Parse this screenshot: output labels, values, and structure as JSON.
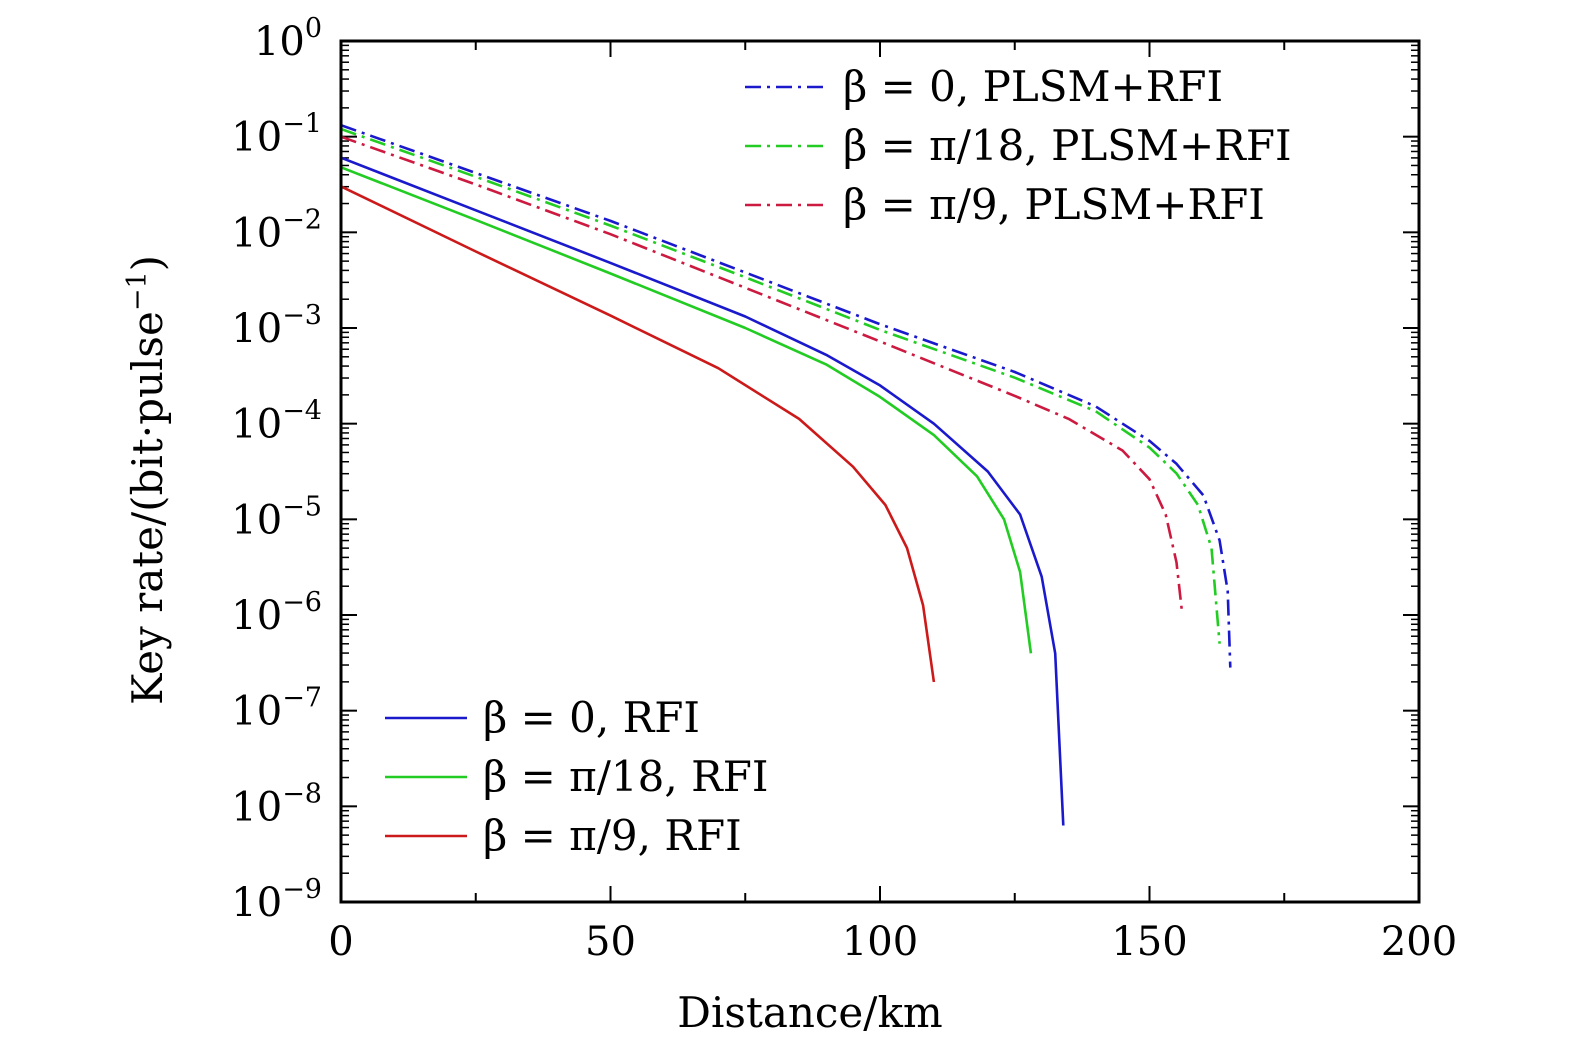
{
  "chart_data": {
    "type": "line",
    "title": "",
    "xlabel": "Distance/km",
    "ylabel": "Key rate/(bit·pulse⁻¹)",
    "ylabel_main": "Key rate/(bit·pulse",
    "ylabel_exp": "−1",
    "ylabel_close": ")",
    "xlim": [
      0,
      200
    ],
    "ylim_log10": [
      -9,
      0
    ],
    "y_scale": "log",
    "grid": false,
    "x_ticks": [
      "0",
      "50",
      "100",
      "150",
      "200"
    ],
    "y_ticks": [
      {
        "base": "10",
        "exp": "0"
      },
      {
        "base": "10",
        "exp": "−1"
      },
      {
        "base": "10",
        "exp": "−2"
      },
      {
        "base": "10",
        "exp": "−3"
      },
      {
        "base": "10",
        "exp": "−4"
      },
      {
        "base": "10",
        "exp": "−5"
      },
      {
        "base": "10",
        "exp": "−6"
      },
      {
        "base": "10",
        "exp": "−7"
      },
      {
        "base": "10",
        "exp": "−8"
      },
      {
        "base": "10",
        "exp": "−9"
      }
    ],
    "legends": [
      {
        "placement": "top-right",
        "entries": [
          0,
          1,
          2
        ]
      },
      {
        "placement": "bottom-left",
        "entries": [
          3,
          4,
          5
        ]
      }
    ],
    "series": [
      {
        "name": "β = 0, PLSM+RFI",
        "color": "#1a1acc",
        "style": "dashdot",
        "points": [
          [
            0,
            -0.88
          ],
          [
            25,
            -1.38
          ],
          [
            50,
            -1.88
          ],
          [
            75,
            -2.42
          ],
          [
            100,
            -2.96
          ],
          [
            125,
            -3.46
          ],
          [
            140,
            -3.82
          ],
          [
            150,
            -4.18
          ],
          [
            155,
            -4.42
          ],
          [
            160,
            -4.75
          ],
          [
            163,
            -5.22
          ],
          [
            164.5,
            -5.75
          ],
          [
            165,
            -6.55
          ]
        ]
      },
      {
        "name": "β = π/18, PLSM+RFI",
        "color": "#22cc22",
        "style": "dashdot",
        "points": [
          [
            0,
            -0.92
          ],
          [
            25,
            -1.42
          ],
          [
            50,
            -1.93
          ],
          [
            75,
            -2.47
          ],
          [
            100,
            -3.02
          ],
          [
            125,
            -3.52
          ],
          [
            140,
            -3.87
          ],
          [
            150,
            -4.25
          ],
          [
            155,
            -4.52
          ],
          [
            159,
            -4.85
          ],
          [
            161.5,
            -5.3
          ],
          [
            163,
            -6.3
          ]
        ]
      },
      {
        "name": "β = π/9, PLSM+RFI",
        "color": "#cc1a40",
        "style": "dashdot",
        "points": [
          [
            0,
            -1.0
          ],
          [
            25,
            -1.5
          ],
          [
            50,
            -2.02
          ],
          [
            75,
            -2.58
          ],
          [
            100,
            -3.14
          ],
          [
            125,
            -3.71
          ],
          [
            135,
            -3.95
          ],
          [
            145,
            -4.28
          ],
          [
            150,
            -4.58
          ],
          [
            153,
            -4.95
          ],
          [
            155,
            -5.45
          ],
          [
            156,
            -5.95
          ]
        ]
      },
      {
        "name": "β = 0, RFI",
        "color": "#1a1acc",
        "style": "solid",
        "points": [
          [
            0,
            -1.22
          ],
          [
            25,
            -1.77
          ],
          [
            50,
            -2.32
          ],
          [
            75,
            -2.88
          ],
          [
            90,
            -3.28
          ],
          [
            100,
            -3.6
          ],
          [
            110,
            -4.0
          ],
          [
            120,
            -4.5
          ],
          [
            126,
            -4.95
          ],
          [
            130,
            -5.6
          ],
          [
            132.5,
            -6.4
          ],
          [
            134,
            -8.2
          ]
        ]
      },
      {
        "name": "β = π/18, RFI",
        "color": "#22cc22",
        "style": "solid",
        "points": [
          [
            0,
            -1.32
          ],
          [
            25,
            -1.87
          ],
          [
            50,
            -2.43
          ],
          [
            75,
            -3.0
          ],
          [
            90,
            -3.38
          ],
          [
            100,
            -3.72
          ],
          [
            110,
            -4.12
          ],
          [
            118,
            -4.55
          ],
          [
            123,
            -5.0
          ],
          [
            126,
            -5.55
          ],
          [
            128,
            -6.4
          ]
        ]
      },
      {
        "name": "β = π/9, RFI",
        "color": "#cc1a1a",
        "style": "solid",
        "points": [
          [
            0,
            -1.52
          ],
          [
            25,
            -2.2
          ],
          [
            50,
            -2.87
          ],
          [
            70,
            -3.42
          ],
          [
            85,
            -3.95
          ],
          [
            95,
            -4.45
          ],
          [
            101,
            -4.85
          ],
          [
            105,
            -5.3
          ],
          [
            108,
            -5.9
          ],
          [
            110,
            -6.7
          ]
        ]
      }
    ]
  }
}
